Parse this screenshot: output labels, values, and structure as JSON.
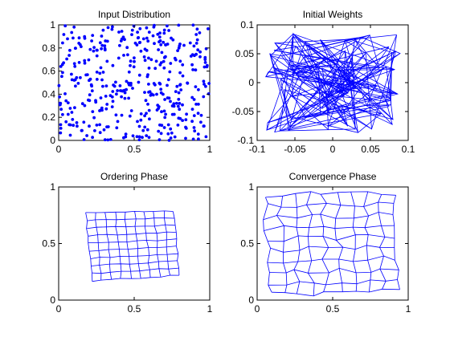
{
  "figure": {
    "background": "#ffffff"
  },
  "chart_data": [
    {
      "type": "scatter",
      "title": "Input Distribution",
      "color": "#0000ff",
      "marker": "dot",
      "point_count": 400,
      "xlim": [
        0,
        1
      ],
      "ylim": [
        0,
        1
      ],
      "xticks": [
        0,
        0.5,
        1
      ],
      "xtick_labels": [
        "0",
        "0.5",
        "1"
      ],
      "yticks": [
        0,
        0.2,
        0.4,
        0.6,
        0.8,
        1
      ],
      "ytick_labels": [
        "0",
        "0.2",
        "0.4",
        "0.6",
        "0.8",
        "1"
      ],
      "grid": false
    },
    {
      "type": "line",
      "title": "Initial Weights",
      "color": "#0000ff",
      "grid_size": [
        10,
        10
      ],
      "xlim": [
        -0.1,
        0.1
      ],
      "ylim": [
        -0.1,
        0.1
      ],
      "xticks": [
        -0.1,
        -0.05,
        0,
        0.05,
        0.1
      ],
      "xtick_labels": [
        "-0.1",
        "-0.05",
        "0",
        "0.05",
        "0.1"
      ],
      "yticks": [
        -0.1,
        -0.05,
        0,
        0.05,
        0.1
      ],
      "ytick_labels": [
        "-0.1",
        "-0.05",
        "0",
        "0.05",
        "0.1"
      ],
      "grid": false
    },
    {
      "type": "line",
      "title": "Ordering Phase",
      "color": "#0000ff",
      "grid_size": [
        10,
        10
      ],
      "corners": {
        "top_left": [
          0.18,
          0.77
        ],
        "top_right": [
          0.76,
          0.79
        ],
        "bottom_left": [
          0.22,
          0.17
        ],
        "bottom_right": [
          0.8,
          0.22
        ]
      },
      "xlim": [
        0,
        1
      ],
      "ylim": [
        0,
        1
      ],
      "xticks": [
        0,
        0.5,
        1
      ],
      "xtick_labels": [
        "0",
        "0.5",
        "1"
      ],
      "yticks": [
        0,
        0.5,
        1
      ],
      "ytick_labels": [
        "0",
        "0.5",
        "1"
      ],
      "grid": false
    },
    {
      "type": "line",
      "title": "Convergence Phase",
      "color": "#0000ff",
      "grid_size": [
        10,
        10
      ],
      "corners": {
        "top_left": [
          0.05,
          0.93
        ],
        "top_right": [
          0.92,
          0.95
        ],
        "bottom_left": [
          0.08,
          0.05
        ],
        "bottom_right": [
          0.93,
          0.08
        ]
      },
      "xlim": [
        0,
        1
      ],
      "ylim": [
        0,
        1
      ],
      "xticks": [
        0,
        0.5,
        1
      ],
      "xtick_labels": [
        "0",
        "0.5",
        "1"
      ],
      "yticks": [
        0,
        0.5,
        1
      ],
      "ytick_labels": [
        "0",
        "0.5",
        "1"
      ],
      "grid": false
    }
  ]
}
